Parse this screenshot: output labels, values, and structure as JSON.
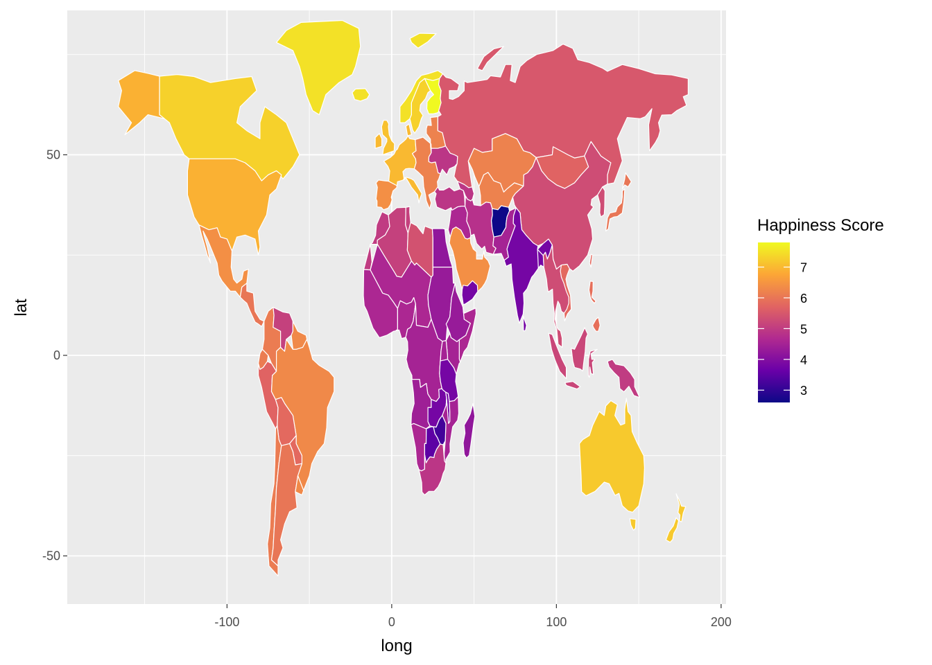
{
  "chart_data": {
    "type": "choropleth-map",
    "xlabel": "long",
    "ylabel": "lat",
    "xlim": [
      -197,
      203
    ],
    "ylim": [
      -62,
      86
    ],
    "x_ticks": [
      -100,
      0,
      100,
      200
    ],
    "y_ticks": [
      -50,
      0,
      50
    ],
    "x_tick_labels": [
      "-100",
      "0",
      "100",
      "200"
    ],
    "y_tick_labels": [
      "-50",
      "0",
      "50"
    ],
    "grid": true,
    "panel_background": "#ebebeb",
    "grid_color": "#ffffff",
    "legend": {
      "title": "Happiness Score",
      "position": "right",
      "range": [
        2.6,
        7.8
      ],
      "breaks": [
        3,
        4,
        5,
        6,
        7
      ],
      "labels": [
        "3",
        "4",
        "5",
        "6",
        "7"
      ],
      "palette": [
        "#0d0887",
        "#6a00a8",
        "#b12a90",
        "#e16462",
        "#fca636",
        "#f0f921"
      ]
    },
    "countries": [
      {
        "name": "Canada",
        "value": 7.3
      },
      {
        "name": "United States",
        "value": 6.9
      },
      {
        "name": "Mexico",
        "value": 6.4
      },
      {
        "name": "Central America",
        "value": 6.0
      },
      {
        "name": "Venezuela",
        "value": 5.1
      },
      {
        "name": "Colombia",
        "value": 6.1
      },
      {
        "name": "Brazil",
        "value": 6.3
      },
      {
        "name": "Peru",
        "value": 5.7
      },
      {
        "name": "Bolivia",
        "value": 5.8
      },
      {
        "name": "Chile",
        "value": 6.1
      },
      {
        "name": "Argentina",
        "value": 6.0
      },
      {
        "name": "Greenland",
        "value": 7.5
      },
      {
        "name": "Iceland",
        "value": 7.5
      },
      {
        "name": "Norway",
        "value": 7.5
      },
      {
        "name": "Sweden",
        "value": 7.3
      },
      {
        "name": "Finland",
        "value": 7.8
      },
      {
        "name": "United Kingdom",
        "value": 7.1
      },
      {
        "name": "Ireland",
        "value": 7.0
      },
      {
        "name": "Western Europe",
        "value": 7.0
      },
      {
        "name": "Eastern Europe",
        "value": 6.2
      },
      {
        "name": "Ukraine",
        "value": 4.9
      },
      {
        "name": "Iberia",
        "value": 6.4
      },
      {
        "name": "Russia",
        "value": 5.5
      },
      {
        "name": "Kazakhstan",
        "value": 6.2
      },
      {
        "name": "Mongolia",
        "value": 5.7
      },
      {
        "name": "China",
        "value": 5.3
      },
      {
        "name": "Japan",
        "value": 6.0
      },
      {
        "name": "Turkey",
        "value": 4.9
      },
      {
        "name": "Middle East",
        "value": 4.6
      },
      {
        "name": "Saudi Arabia",
        "value": 6.4
      },
      {
        "name": "Yemen",
        "value": 3.8
      },
      {
        "name": "Iran",
        "value": 4.8
      },
      {
        "name": "Afghanistan",
        "value": 2.6
      },
      {
        "name": "Pakistan",
        "value": 4.5
      },
      {
        "name": "India",
        "value": 3.8
      },
      {
        "name": "Southeast Asia",
        "value": 5.3
      },
      {
        "name": "Vietnam",
        "value": 5.8
      },
      {
        "name": "Indonesia",
        "value": 5.2
      },
      {
        "name": "Philippines",
        "value": 5.9
      },
      {
        "name": "Papua New Guinea",
        "value": 5.0
      },
      {
        "name": "Australia",
        "value": 7.2
      },
      {
        "name": "New Zealand",
        "value": 7.2
      },
      {
        "name": "Morocco",
        "value": 5.0
      },
      {
        "name": "Algeria",
        "value": 5.1
      },
      {
        "name": "Libya",
        "value": 5.4
      },
      {
        "name": "Egypt",
        "value": 4.2
      },
      {
        "name": "West Africa",
        "value": 4.6
      },
      {
        "name": "Sahel",
        "value": 4.6
      },
      {
        "name": "Sudan",
        "value": 4.3
      },
      {
        "name": "Ethiopia",
        "value": 4.3
      },
      {
        "name": "Somalia",
        "value": 4.6
      },
      {
        "name": "Central Africa",
        "value": 4.5
      },
      {
        "name": "Kenya",
        "value": 4.5
      },
      {
        "name": "Tanzania",
        "value": 3.8
      },
      {
        "name": "Angola",
        "value": 4.4
      },
      {
        "name": "Zambia",
        "value": 3.8
      },
      {
        "name": "Zimbabwe",
        "value": 3.2
      },
      {
        "name": "Mozambique",
        "value": 4.5
      },
      {
        "name": "Namibia",
        "value": 4.6
      },
      {
        "name": "Botswana",
        "value": 3.5
      },
      {
        "name": "South Africa",
        "value": 4.9
      },
      {
        "name": "Madagascar",
        "value": 4.2
      }
    ]
  }
}
